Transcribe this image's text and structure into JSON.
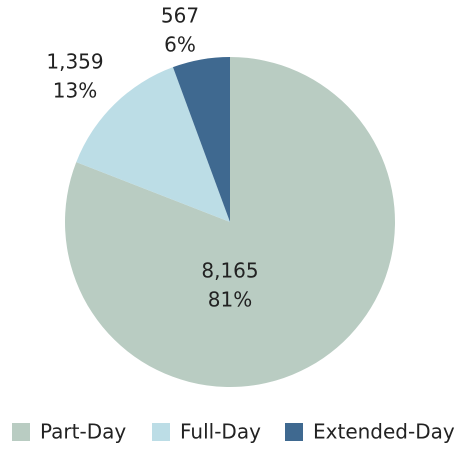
{
  "chart_data": {
    "type": "pie",
    "categories": [
      "Part-Day",
      "Full-Day",
      "Extended-Day"
    ],
    "values": [
      8165,
      1359,
      567
    ],
    "value_labels": [
      "8,165",
      "1,359",
      "567"
    ],
    "percent_labels": [
      "81%",
      "13%",
      "6%"
    ],
    "colors": [
      "#b9ccc2",
      "#bcdde6",
      "#3f6990"
    ],
    "legend": "bottom"
  }
}
